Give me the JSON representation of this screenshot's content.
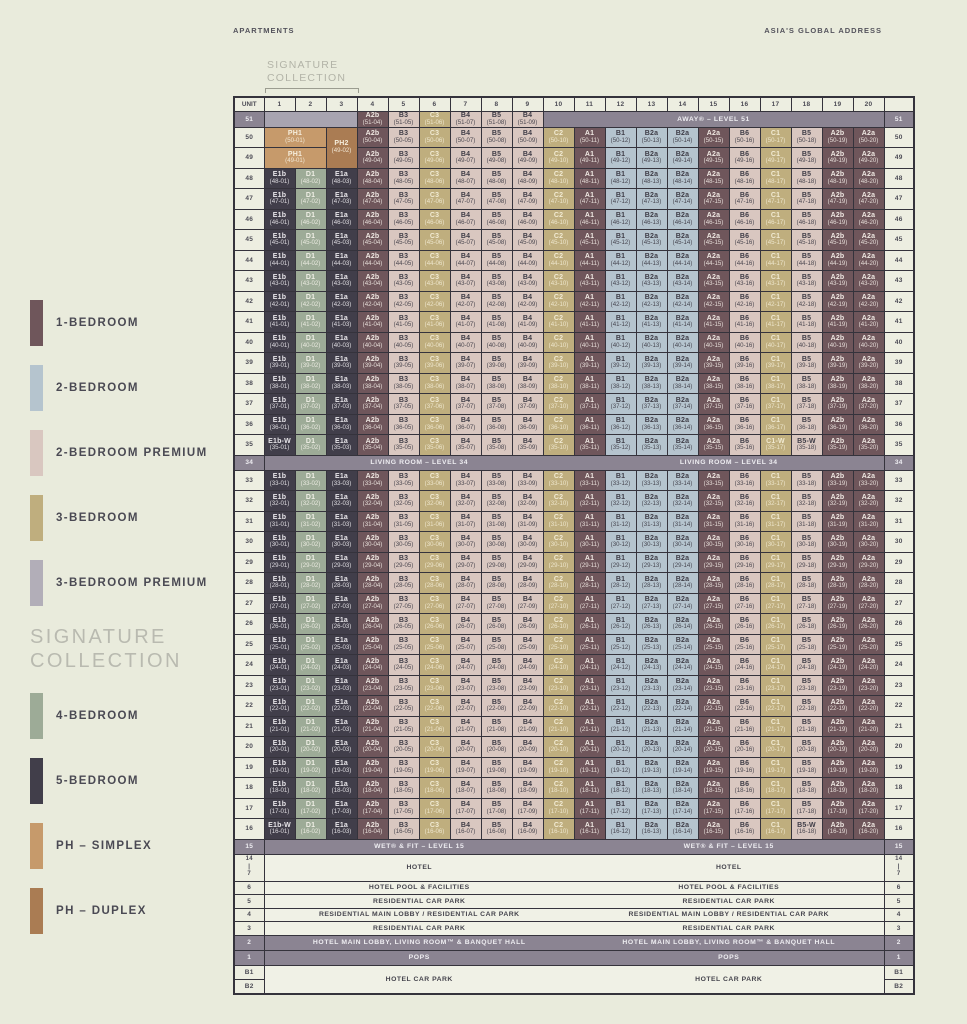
{
  "header": {
    "left": "APARTMENTS",
    "right": "ASIA'S GLOBAL ADDRESS"
  },
  "signature_note": {
    "label": "SIGNATURE\nCOLLECTION"
  },
  "legend": {
    "main_items": [
      {
        "label": "1-BEDROOM",
        "category": "br1"
      },
      {
        "label": "2-BEDROOM",
        "category": "br2"
      },
      {
        "label": "2-BEDROOM PREMIUM",
        "category": "br2p"
      },
      {
        "label": "3-BEDROOM",
        "category": "br3"
      },
      {
        "label": "3-BEDROOM PREMIUM",
        "category": "br3p"
      }
    ],
    "signature_heading": "SIGNATURE\nCOLLECTION",
    "signature_items": [
      {
        "label": "4-BEDROOM",
        "category": "br4"
      },
      {
        "label": "5-BEDROOM",
        "category": "br5"
      },
      {
        "label": "PH – SIMPLEX",
        "category": "phs"
      },
      {
        "label": "PH – DUPLEX",
        "category": "phd"
      }
    ]
  },
  "category_colors": {
    "br1": {
      "bg": "#6f565b",
      "fg": "#efe8e2"
    },
    "br2": {
      "bg": "#b5c4ce",
      "fg": "#3e3c46"
    },
    "br2p": {
      "bg": "#d9c7c0",
      "fg": "#3e3c46"
    },
    "br3": {
      "bg": "#bfae7e",
      "fg": "#f1ead2"
    },
    "br3p": {
      "bg": "#b2aeb8",
      "fg": "#3e3c46"
    },
    "br4": {
      "bg": "#9dab97",
      "fg": "#f0efe6"
    },
    "br5": {
      "bg": "#413e4a",
      "fg": "#e8e6ea"
    },
    "phs": {
      "bg": "#c69a6b",
      "fg": "#f6eedd"
    },
    "phd": {
      "bg": "#aa7c53",
      "fg": "#f6eedd"
    }
  },
  "colors": {
    "page_bg": "#e9ebdc",
    "band_bg": "#8b8492",
    "band_fg": "#eeedf1",
    "label_bg": "#edeee1",
    "label_fg": "#4c4b55",
    "info_bg": "#f0f1e6",
    "info_fg": "#45444d",
    "empty51_bg": "#a8a4b0",
    "grid_line": "#35333c",
    "muted_heading": "#b9bab0"
  },
  "table": {
    "corner_label": "UNIT",
    "columns": [
      "1",
      "2",
      "3",
      "4",
      "5",
      "6",
      "7",
      "8",
      "9",
      "10",
      "11",
      "12",
      "13",
      "14",
      "15",
      "16",
      "17",
      "18",
      "19",
      "20"
    ],
    "unit_number_format": "({floor}-{col})"
  },
  "unit_categories": {
    "A1": "br1",
    "A2a": "br1",
    "A2b": "br1",
    "B1": "br2",
    "B2a": "br2",
    "B3": "br2p",
    "B4": "br2p",
    "B5": "br2p",
    "B6": "br2p",
    "B5-W": "br2p",
    "C1": "br3",
    "C2": "br3",
    "C3": "br3",
    "C1-W": "br3",
    "D1": "br4",
    "E1a": "br5",
    "E1b": "br5",
    "E1b-W": "br5",
    "PH1": "phs",
    "PH2": "phd"
  },
  "stack": {
    "pattern": [
      "E1b",
      "D1",
      "E1a",
      "A2b",
      "B3",
      "C3",
      "B4",
      "B5",
      "B4",
      "C2",
      "A1",
      "B1",
      "B2a",
      "B2a",
      "A2a",
      "B6",
      "C1",
      "B5",
      "A2b",
      "A2a"
    ],
    "rows": [
      {
        "kind": "l51",
        "label": "51",
        "empty_span": 3,
        "units_start_col": 4,
        "units": [
          "A2b",
          "B3",
          "C3",
          "B4",
          "B5",
          "B4"
        ],
        "band_text": "AWAY® – LEVEL 51",
        "band_span": 11
      },
      {
        "kind": "ph",
        "label": "50",
        "ph1": {
          "code": "PH1",
          "unit": "(50-01)"
        },
        "ph2": {
          "code": "PH2",
          "unit": "(49-02)"
        }
      },
      {
        "kind": "ph",
        "label": "49",
        "ph1": {
          "code": "PH1",
          "unit": "(49-01)"
        }
      },
      {
        "kind": "floor",
        "label": "48"
      },
      {
        "kind": "floor",
        "label": "47"
      },
      {
        "kind": "floor",
        "label": "46"
      },
      {
        "kind": "floor",
        "label": "45"
      },
      {
        "kind": "floor",
        "label": "44"
      },
      {
        "kind": "floor",
        "label": "43"
      },
      {
        "kind": "floor",
        "label": "42"
      },
      {
        "kind": "floor",
        "label": "41"
      },
      {
        "kind": "floor",
        "label": "40"
      },
      {
        "kind": "floor",
        "label": "39"
      },
      {
        "kind": "floor",
        "label": "38"
      },
      {
        "kind": "floor",
        "label": "37"
      },
      {
        "kind": "floor",
        "label": "36"
      },
      {
        "kind": "floor",
        "label": "35",
        "overrides": {
          "1": "E1b-W",
          "17": "C1-W",
          "18": "B5-W"
        }
      },
      {
        "kind": "band",
        "label": "34",
        "text": "LIVING ROOM – LEVEL 34"
      },
      {
        "kind": "floor",
        "label": "33"
      },
      {
        "kind": "floor",
        "label": "32"
      },
      {
        "kind": "floor",
        "label": "31"
      },
      {
        "kind": "floor",
        "label": "30"
      },
      {
        "kind": "floor",
        "label": "29"
      },
      {
        "kind": "floor",
        "label": "28"
      },
      {
        "kind": "floor",
        "label": "27"
      },
      {
        "kind": "floor",
        "label": "26"
      },
      {
        "kind": "floor",
        "label": "25"
      },
      {
        "kind": "floor",
        "label": "24"
      },
      {
        "kind": "floor",
        "label": "23"
      },
      {
        "kind": "floor",
        "label": "22"
      },
      {
        "kind": "floor",
        "label": "21"
      },
      {
        "kind": "floor",
        "label": "20"
      },
      {
        "kind": "floor",
        "label": "19"
      },
      {
        "kind": "floor",
        "label": "18"
      },
      {
        "kind": "floor",
        "label": "17"
      },
      {
        "kind": "floor",
        "label": "16",
        "overrides": {
          "1": "E1b-W",
          "18": "B5-W"
        }
      },
      {
        "kind": "band",
        "label": "15",
        "text": "WET® & FIT – LEVEL 15"
      },
      {
        "kind": "info",
        "label": "14\n|\n7",
        "text": "HOTEL",
        "tall": true
      },
      {
        "kind": "info",
        "label": "6",
        "text": "HOTEL POOL & FACILITIES"
      },
      {
        "kind": "info",
        "label": "5",
        "text": "RESIDENTIAL CAR PARK"
      },
      {
        "kind": "info",
        "label": "4",
        "text": "RESIDENTIAL MAIN LOBBY / RESIDENTIAL CAR PARK"
      },
      {
        "kind": "info",
        "label": "3",
        "text": "RESIDENTIAL CAR PARK"
      },
      {
        "kind": "band",
        "label": "2",
        "text": "HOTEL MAIN LOBBY, LIVING ROOM™ & BANQUET HALL"
      },
      {
        "kind": "band",
        "label": "1",
        "text": "POPS"
      },
      {
        "kind": "carpark",
        "label": "B1",
        "label2": "B2",
        "text": "HOTEL CAR PARK"
      }
    ]
  }
}
